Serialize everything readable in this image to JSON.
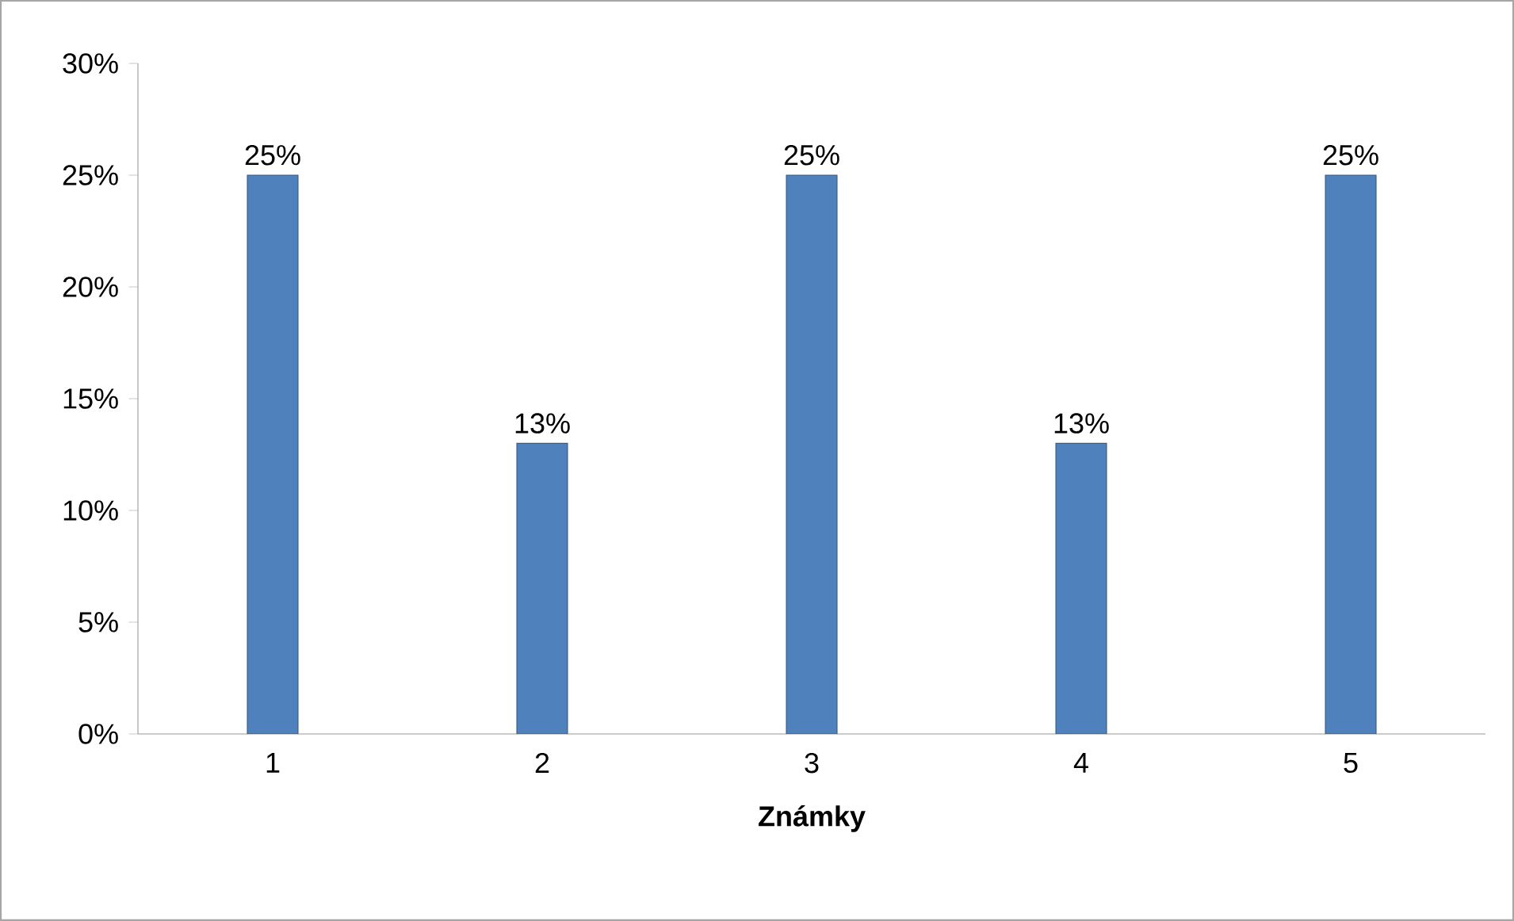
{
  "chart_data": {
    "type": "bar",
    "xlabel": "Známky",
    "categories": [
      "1",
      "2",
      "3",
      "4",
      "5"
    ],
    "values": [
      25,
      13,
      25,
      13,
      25
    ],
    "value_labels": [
      "25%",
      "13%",
      "25%",
      "13%",
      "25%"
    ],
    "color": "#4f81bd",
    "ylim": [
      0,
      30
    ],
    "yticks": [
      {
        "value": 0,
        "label": "0%"
      },
      {
        "value": 5,
        "label": "5%"
      },
      {
        "value": 10,
        "label": "10%"
      },
      {
        "value": 15,
        "label": "15%"
      },
      {
        "value": 20,
        "label": "20%"
      },
      {
        "value": 25,
        "label": "25%"
      },
      {
        "value": 30,
        "label": "30%"
      }
    ],
    "grid": false
  }
}
